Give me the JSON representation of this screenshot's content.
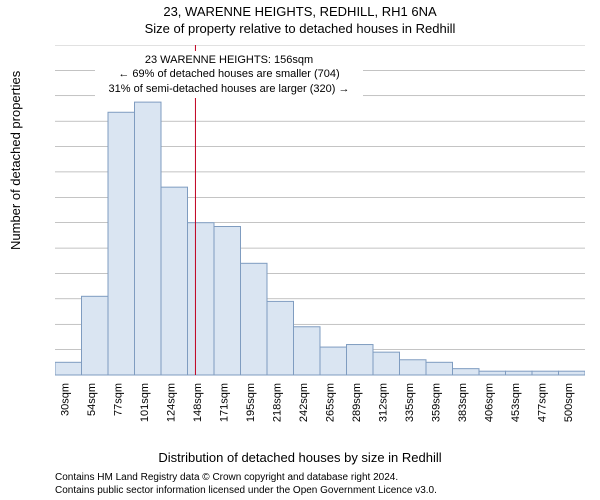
{
  "title": "23, WARENNE HEIGHTS, REDHILL, RH1 6NA",
  "subtitle": "Size of property relative to detached houses in Redhill",
  "ylabel": "Number of detached properties",
  "xlabel": "Distribution of detached houses by size in Redhill",
  "annotation": {
    "line1": "23 WARENNE HEIGHTS: 156sqm",
    "line2": "← 69% of detached houses are smaller (704)",
    "line3": "31% of semi-detached houses are larger (320) →"
  },
  "footer1": "Contains HM Land Registry data © Crown copyright and database right 2024.",
  "footer2": "Contains public sector information licensed under the Open Government Licence v3.0.",
  "chart": {
    "type": "histogram",
    "categories": [
      "30sqm",
      "54sqm",
      "77sqm",
      "101sqm",
      "124sqm",
      "148sqm",
      "171sqm",
      "195sqm",
      "218sqm",
      "242sqm",
      "265sqm",
      "289sqm",
      "312sqm",
      "335sqm",
      "359sqm",
      "383sqm",
      "406sqm",
      "453sqm",
      "477sqm",
      "500sqm"
    ],
    "values": [
      10,
      62,
      207,
      215,
      148,
      120,
      117,
      88,
      58,
      38,
      22,
      24,
      18,
      12,
      10,
      5,
      3,
      3,
      3,
      3
    ],
    "ylim": [
      0,
      260
    ],
    "ytick_step": 20,
    "bar_fill": "#dae5f2",
    "bar_stroke": "#7f9cc0",
    "reference_line_x": 5.3,
    "reference_line_color": "#c00020",
    "background": "#ffffff",
    "grid_color": "#888888",
    "title_fontsize": 13,
    "label_fontsize": 13,
    "tick_fontsize": 11
  }
}
